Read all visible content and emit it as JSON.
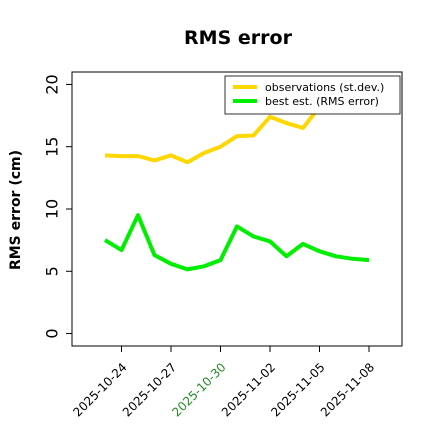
{
  "chart_data": {
    "type": "line",
    "title": "RMS error",
    "xlabel": "",
    "ylabel": "RMS error (cm)",
    "xlim": [
      "2025-10-21",
      "2025-11-10"
    ],
    "ylim": [
      -1,
      21
    ],
    "grid": false,
    "legend_position": "top-right",
    "x": [
      "2025-10-23",
      "2025-10-24",
      "2025-10-25",
      "2025-10-26",
      "2025-10-27",
      "2025-10-28",
      "2025-10-29",
      "2025-10-30",
      "2025-10-31",
      "2025-11-01",
      "2025-11-02",
      "2025-11-03",
      "2025-11-04",
      "2025-11-05",
      "2025-11-06",
      "2025-11-07",
      "2025-11-08"
    ],
    "series": [
      {
        "name": "observations (st.dev.)",
        "color": "#FFD700",
        "values": [
          14.3,
          14.25,
          14.25,
          13.9,
          14.3,
          13.75,
          14.5,
          15.0,
          15.85,
          15.9,
          17.4,
          16.9,
          16.5,
          18.2,
          null,
          null,
          null
        ]
      },
      {
        "name": "best est. (RMS error)",
        "color": "#00EE00",
        "values": [
          7.5,
          6.7,
          9.5,
          6.3,
          5.6,
          5.15,
          5.4,
          5.9,
          8.6,
          7.8,
          7.4,
          6.2,
          7.2,
          6.6,
          6.2,
          6.0,
          5.9
        ]
      }
    ],
    "xticks": [
      "2025-10-24",
      "2025-10-27",
      "2025-10-30",
      "2025-11-02",
      "2025-11-05",
      "2025-11-08"
    ],
    "xtick_colors": [
      "#000000",
      "#000000",
      "#228B22",
      "#000000",
      "#000000",
      "#000000"
    ],
    "yticks": [
      0,
      5,
      10,
      15,
      20
    ]
  }
}
